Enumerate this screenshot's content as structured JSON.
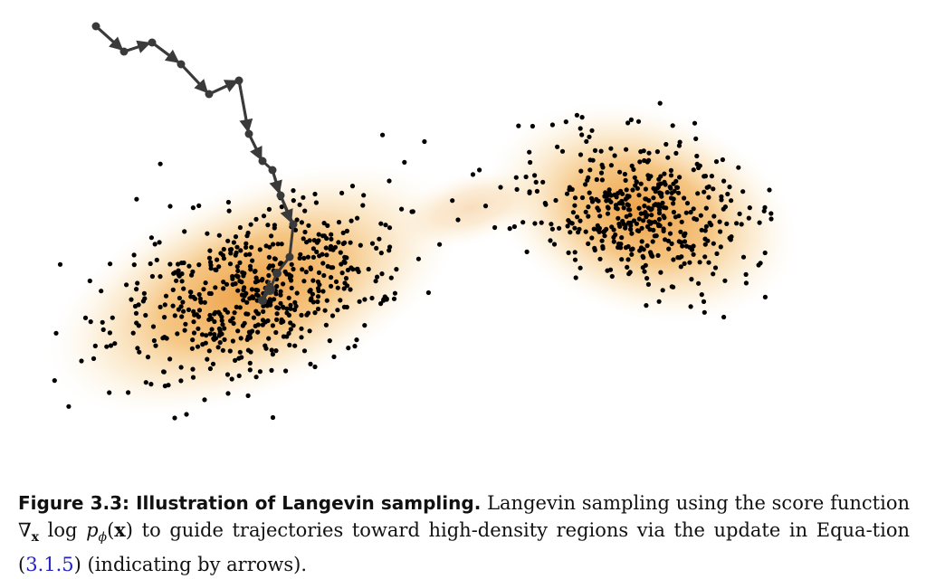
{
  "caption": {
    "label": "Figure 3.3: Illustration of Langevin sampling.",
    "text_before": "Langevin sampling using the score function",
    "text_middle": "to guide trajectories toward high-density regions via the update in Equa-tion (",
    "equation_ref": "3.1.5",
    "text_after": ") (indicating by arrows)."
  },
  "figure": {
    "density_color": "#f0a040",
    "point_color": "#000000",
    "trajectory_color": "#3a3a3a"
  }
}
